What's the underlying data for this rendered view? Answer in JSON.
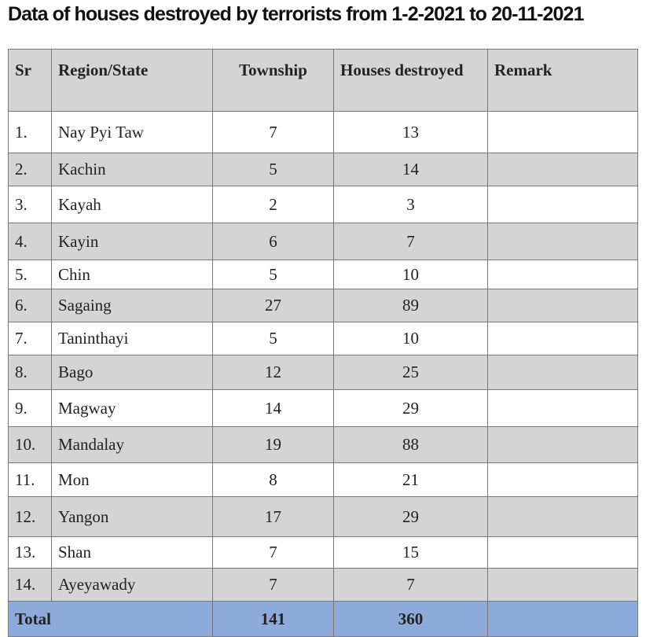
{
  "title": "Data of houses destroyed by terrorists from 1-2-2021 to 20-11-2021",
  "table": {
    "header": [
      "Sr",
      "Region/State",
      "Township",
      "Houses destroyed",
      "Remark"
    ],
    "rows": [
      [
        "1.",
        "Nay Pyi Taw",
        7,
        13
      ],
      [
        "2.",
        "Kachin",
        5,
        14
      ],
      [
        "3.",
        "Kayah",
        2,
        3
      ],
      [
        "4.",
        "Kayin",
        6,
        7
      ],
      [
        "5.",
        "Chin",
        5,
        10
      ],
      [
        "6.",
        "Sagaing",
        27,
        89
      ],
      [
        "7.",
        "Taninthayi",
        5,
        10
      ],
      [
        "8.",
        "Bago",
        12,
        25
      ],
      [
        "9.",
        "Magway",
        14,
        29
      ],
      [
        "10.",
        "Mandalay",
        19,
        88
      ],
      [
        "11.",
        "Mon",
        8,
        21
      ],
      [
        "12.",
        "Yangon",
        17,
        29
      ],
      [
        "13.",
        "Shan",
        7,
        15
      ],
      [
        "14.",
        "Ayeyawady",
        7,
        7
      ]
    ],
    "total": [
      "Total",
      141,
      360
    ]
  }
}
